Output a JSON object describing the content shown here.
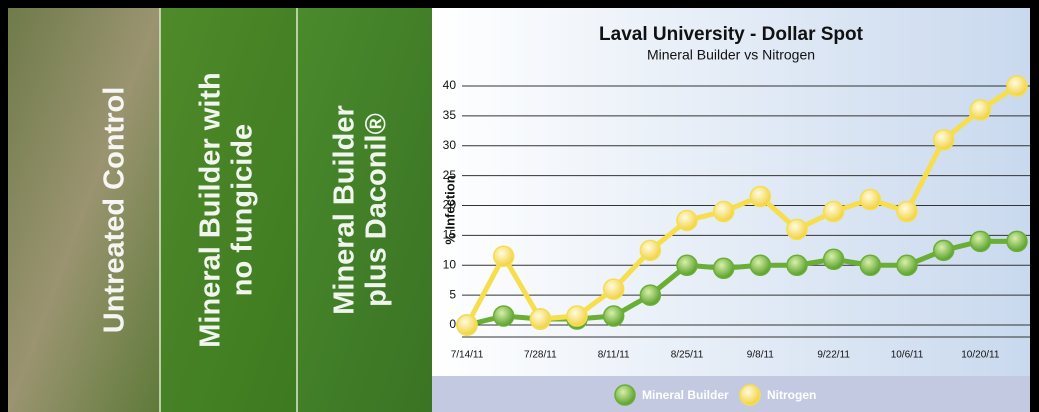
{
  "panels": [
    {
      "lines": [
        "Untreated Control"
      ]
    },
    {
      "lines": [
        "Mineral Builder with",
        "no fungicide"
      ]
    },
    {
      "lines": [
        "Mineral Builder",
        "plus Daconil®"
      ]
    }
  ],
  "chart_data": {
    "type": "line",
    "title": "Laval University - Dollar Spot",
    "subtitle": "Mineral Builder vs Nitrogen",
    "y_label": "% Infection",
    "categories": [
      "7/14/11",
      null,
      "7/28/11",
      null,
      "8/11/11",
      null,
      "8/25/11",
      null,
      "9/8/11",
      null,
      "9/22/11",
      null,
      "10/6/11",
      null,
      "10/20/11",
      null
    ],
    "series": [
      {
        "name": "Mineral Builder",
        "color": "#6aae35",
        "values": [
          0,
          1.5,
          1,
          1,
          1.5,
          5,
          10,
          9.5,
          10,
          10,
          11,
          10,
          10,
          12.5,
          14,
          14
        ]
      },
      {
        "name": "Nitrogen",
        "color": "#f6de4c",
        "values": [
          0,
          11.5,
          1,
          1.5,
          6,
          12.5,
          17.5,
          19,
          21.5,
          16,
          19,
          21,
          19,
          31,
          36,
          40
        ]
      }
    ],
    "ylim": [
      0,
      40
    ],
    "yticks": [
      0,
      5,
      10,
      15,
      20,
      25,
      30,
      35,
      40
    ],
    "grid": true,
    "legend": "bottom"
  }
}
